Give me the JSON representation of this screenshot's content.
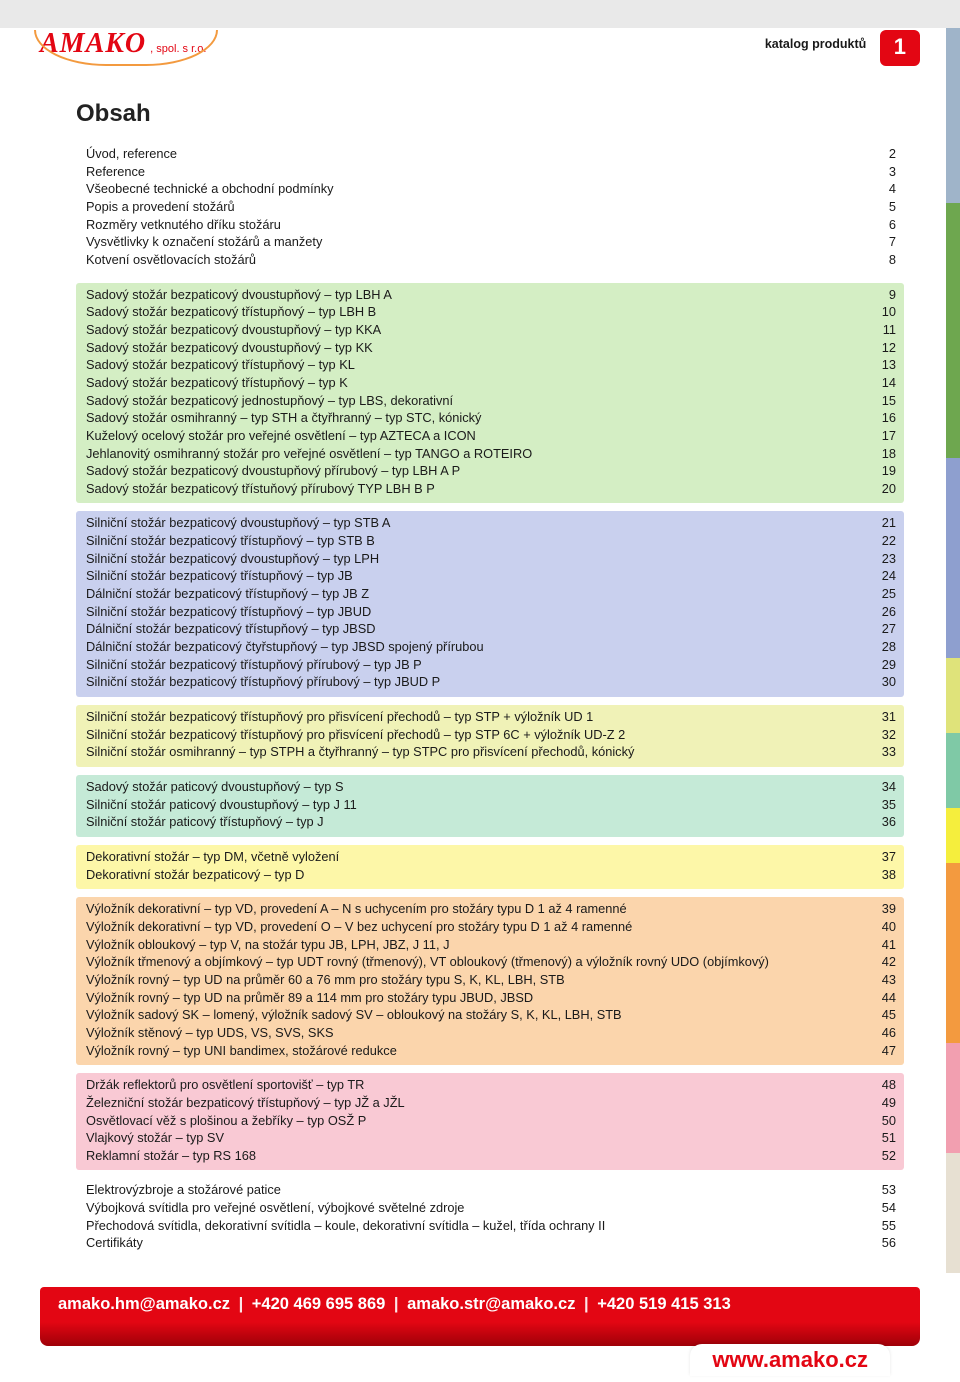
{
  "header": {
    "logo": "AMAKO",
    "logo_sub": ", spol. s r.o.",
    "crumb": "katalog produktů",
    "page_no": "1"
  },
  "title": "Obsah",
  "side_colors": [
    "#9fb4c9",
    "#6ea74f",
    "#8e9fcf",
    "#dfe37a",
    "#7fc9a6",
    "#f5ee3d",
    "#f39a3f",
    "#f29fb0",
    "#e7e0d2"
  ],
  "side_heights": [
    175,
    255,
    200,
    75,
    75,
    55,
    180,
    110,
    120
  ],
  "sections": [
    {
      "bg": "#ffffff",
      "items": [
        {
          "t": "Úvod, reference",
          "p": "2"
        },
        {
          "t": "Reference",
          "p": "3"
        },
        {
          "t": "Všeobecné technické a obchodní podmínky",
          "p": "4"
        },
        {
          "t": "Popis a provedení stožárů",
          "p": "5"
        },
        {
          "t": "Rozměry vetknutého dříku stožáru",
          "p": "6"
        },
        {
          "t": "Vysvětlivky k označení stožárů a manžety",
          "p": "7"
        },
        {
          "t": "Kotvení osvětlovacích stožárů",
          "p": "8"
        }
      ]
    },
    {
      "bg": "#d4eec4",
      "items": [
        {
          "t": "Sadový stožár bezpaticový dvoustupňový – typ LBH A",
          "p": "9"
        },
        {
          "t": "Sadový stožár bezpaticový třístupňový – typ LBH B",
          "p": "10"
        },
        {
          "t": "Sadový stožár bezpaticový dvoustupňový – typ KKA",
          "p": "11"
        },
        {
          "t": "Sadový stožár bezpaticový dvoustupňový – typ KK",
          "p": "12"
        },
        {
          "t": "Sadový stožár bezpaticový třístupňový – typ KL",
          "p": "13"
        },
        {
          "t": "Sadový stožár bezpaticový třístupňový – typ K",
          "p": "14"
        },
        {
          "t": "Sadový stožár bezpaticový jednostupňový – typ LBS, dekorativní",
          "p": "15"
        },
        {
          "t": "Sadový stožár osmihranný – typ STH a čtyřhranný – typ STC, kónický",
          "p": "16"
        },
        {
          "t": "Kuželový ocelový stožár pro veřejné osvětlení – typ AZTECA a ICON",
          "p": "17"
        },
        {
          "t": "Jehlanovitý osmihranný stožár pro veřejné osvětlení – typ TANGO a ROTEIRO",
          "p": "18"
        },
        {
          "t": "Sadový stožár bezpaticový dvoustupňový přírubový – typ LBH A P",
          "p": "19"
        },
        {
          "t": "Sadový stožár bezpaticový třístuňový přírubový  TYP LBH B P",
          "p": "20"
        }
      ]
    },
    {
      "bg": "#c9d0ee",
      "items": [
        {
          "t": "Silniční stožár bezpaticový dvoustupňový – typ STB A",
          "p": "21"
        },
        {
          "t": "Silniční stožár bezpaticový třístupňový – typ STB B",
          "p": "22"
        },
        {
          "t": "Silniční stožár bezpaticový dvoustupňový – typ LPH",
          "p": "23"
        },
        {
          "t": "Silniční stožár bezpaticový třístupňový – typ JB",
          "p": "24"
        },
        {
          "t": "Dálniční stožár bezpaticový třístupňový – typ JB Z",
          "p": "25"
        },
        {
          "t": "Silniční stožár bezpaticový třístupňový – typ JBUD",
          "p": "26"
        },
        {
          "t": "Dálniční stožár bezpaticový třístupňový – typ JBSD",
          "p": "27"
        },
        {
          "t": "Dálniční stožár bezpaticový čtyřstupňový – typ JBSD spojený přírubou",
          "p": "28"
        },
        {
          "t": "Silniční stožár bezpaticový třístupňový přírubový – typ JB P",
          "p": "29"
        },
        {
          "t": "Silniční stožár bezpaticový třístupňový přírubový – typ JBUD P",
          "p": "30"
        }
      ]
    },
    {
      "bg": "#f0f2b7",
      "items": [
        {
          "t": "Silniční stožár bezpaticový třístupňový pro přisvícení přechodů – typ STP + výložník UD 1",
          "p": "31"
        },
        {
          "t": "Silniční stožár bezpaticový třístupňový pro přisvícení přechodů – typ STP 6C + výložník UD-Z 2",
          "p": "32"
        },
        {
          "t": "Silniční stožár osmihranný – typ STPH a čtyřhranný – typ STPC pro přisvícení přechodů, kónický",
          "p": "33"
        }
      ]
    },
    {
      "bg": "#c5ead7",
      "items": [
        {
          "t": "Sadový stožár paticový dvoustupňový – typ S",
          "p": "34"
        },
        {
          "t": "Silniční stožár paticový dvoustupňový – typ J 11",
          "p": "35"
        },
        {
          "t": "Silniční stožár paticový třístupňový – typ J",
          "p": "36"
        }
      ]
    },
    {
      "bg": "#fdf7a8",
      "items": [
        {
          "t": "Dekorativní stožár – typ DM, včetně vyložení",
          "p": "37"
        },
        {
          "t": "Dekorativní stožár bezpaticový – typ D",
          "p": "38"
        }
      ]
    },
    {
      "bg": "#fbd5ac",
      "items": [
        {
          "t": "Výložník dekorativní – typ VD, provedení A – N s uchycením pro stožáry typu D 1 až 4 ramenné",
          "p": "39"
        },
        {
          "t": "Výložník dekorativní – typ VD, provedení O – V bez uchycení pro stožáry typu D 1 až 4 ramenné",
          "p": "40"
        },
        {
          "t": "Výložník obloukový – typ V, na stožár typu JB, LPH, JBZ, J 11, J",
          "p": "41"
        },
        {
          "t": "Výložník třmenový a objímkový – typ UDT rovný (třmenový),  VT obloukový (třmenový) a výložník rovný UDO (objímkový)",
          "p": "42"
        },
        {
          "t": "Výložník rovný – typ UD na průměr 60 a 76 mm pro stožáry typu S, K, KL, LBH, STB",
          "p": "43"
        },
        {
          "t": "Výložník rovný – typ UD na průměr 89 a 114 mm pro stožáry typu JBUD, JBSD",
          "p": "44"
        },
        {
          "t": "Výložník sadový SK – lomený, výložník sadový SV – obloukový na stožáry S, K, KL, LBH, STB",
          "p": "45"
        },
        {
          "t": "Výložník stěnový – typ UDS, VS, SVS, SKS",
          "p": "46"
        },
        {
          "t": "Výložník rovný – typ UNI bandimex, stožárové redukce",
          "p": "47"
        }
      ]
    },
    {
      "bg": "#f9c9d4",
      "items": [
        {
          "t": "Držák reflektorů pro osvětlení sportovišť – typ TR",
          "p": "48"
        },
        {
          "t": "Železniční stožár bezpaticový třístupňový – typ JŽ a JŽL",
          "p": "49"
        },
        {
          "t": "Osvětlovací věž s plošinou a žebříky – typ OSŽ P",
          "p": "50"
        },
        {
          "t": "Vlajkový stožár – typ SV",
          "p": "51"
        },
        {
          "t": "Reklamní stožár – typ RS 168",
          "p": "52"
        }
      ]
    },
    {
      "bg": "#ffffff",
      "items": [
        {
          "t": "Elektrovýzbroje a stožárové patice",
          "p": "53"
        },
        {
          "t": "Výbojková svítidla pro veřejné osvětlení, výbojkové světelné zdroje",
          "p": "54"
        },
        {
          "t": "Přechodová svítidla, dekorativní svítidla – koule, dekorativní svítidla – kužel, třída ochrany II",
          "p": "55"
        },
        {
          "t": "Certifikáty",
          "p": "56"
        }
      ]
    }
  ],
  "footer": {
    "parts": [
      "amako.hm@amako.cz",
      "+420 469 695 869",
      "amako.str@amako.cz",
      "+420 519 415 313"
    ],
    "url": "www.amako.cz"
  }
}
